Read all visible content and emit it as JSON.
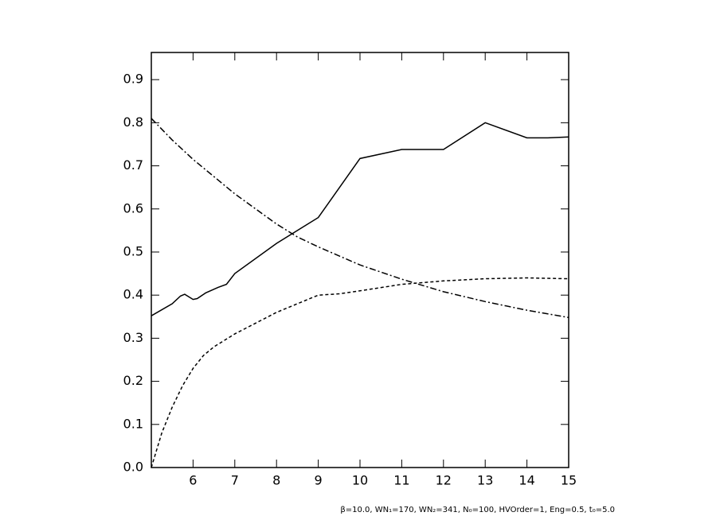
{
  "chart_data": {
    "type": "line",
    "xlim": [
      5,
      15
    ],
    "xticks": [
      6,
      7,
      8,
      9,
      10,
      11,
      12,
      13,
      14,
      15
    ],
    "ylim": [
      0,
      0.963
    ],
    "yticks": [
      {
        "value": 0,
        "label": "0.0"
      },
      0.1,
      0.2,
      0.3,
      0.4,
      0.5,
      0.6,
      0.7,
      0.8,
      0.9
    ],
    "series": [
      {
        "color": "#000000",
        "dash": "solid",
        "x": [
          5,
          5.5,
          5.7,
          5.8,
          6,
          6.1,
          6.3,
          6.6,
          6.8,
          7,
          8,
          9,
          10,
          11,
          12,
          13,
          14,
          14.5,
          15
        ],
        "values": [
          0.352,
          0.38,
          0.398,
          0.402,
          0.39,
          0.392,
          0.405,
          0.418,
          0.425,
          0.45,
          0.52,
          0.58,
          0.717,
          0.738,
          0.738,
          0.8,
          0.765,
          0.765,
          0.767
        ]
      },
      {
        "color": "#000000",
        "dash": "dashed",
        "x": [
          5,
          5.25,
          5.5,
          5.75,
          6,
          6.25,
          6.5,
          7,
          7.5,
          8,
          8.5,
          9,
          9.5,
          10,
          11,
          12,
          13,
          14,
          15
        ],
        "values": [
          0,
          0.08,
          0.14,
          0.19,
          0.23,
          0.26,
          0.28,
          0.31,
          0.335,
          0.36,
          0.38,
          0.4,
          0.403,
          0.41,
          0.425,
          0.433,
          0.438,
          0.44,
          0.438
        ]
      },
      {
        "color": "#000000",
        "dash": "dashdot",
        "x": [
          5,
          5.5,
          6,
          6.5,
          7,
          7.5,
          8,
          8.5,
          9,
          10,
          11,
          12,
          13,
          14,
          15
        ],
        "values": [
          0.81,
          0.76,
          0.715,
          0.675,
          0.635,
          0.6,
          0.565,
          0.535,
          0.512,
          0.47,
          0.437,
          0.408,
          0.385,
          0.365,
          0.348
        ]
      }
    ],
    "note": "β=10.0, WN₁=170, WN₂=341, N₀=100, HVOrder=1, Eng=0.5, t₀=5.0"
  }
}
